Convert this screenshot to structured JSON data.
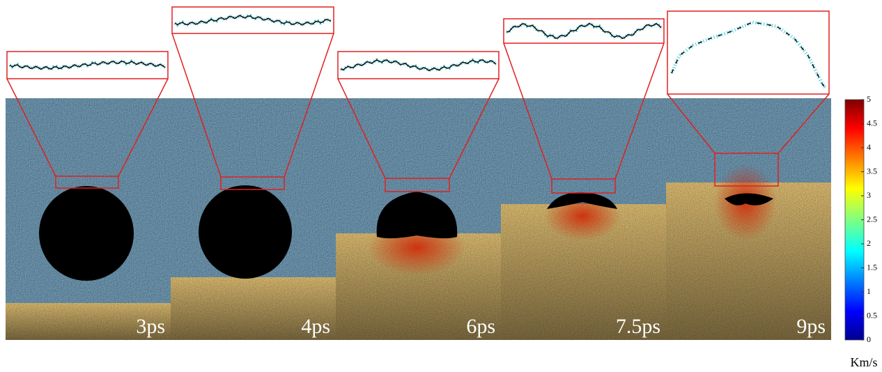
{
  "panels": [
    {
      "label": "3ps"
    },
    {
      "label": "4ps"
    },
    {
      "label": "6ps"
    },
    {
      "label": "7.5ps"
    },
    {
      "label": "9ps"
    }
  ],
  "colorbar": {
    "lim": [
      0,
      5
    ],
    "ticks": [
      0,
      0.5,
      1,
      1.5,
      2,
      2.5,
      3,
      3.5,
      4,
      4.5,
      5
    ],
    "unit": "Km/s"
  }
}
